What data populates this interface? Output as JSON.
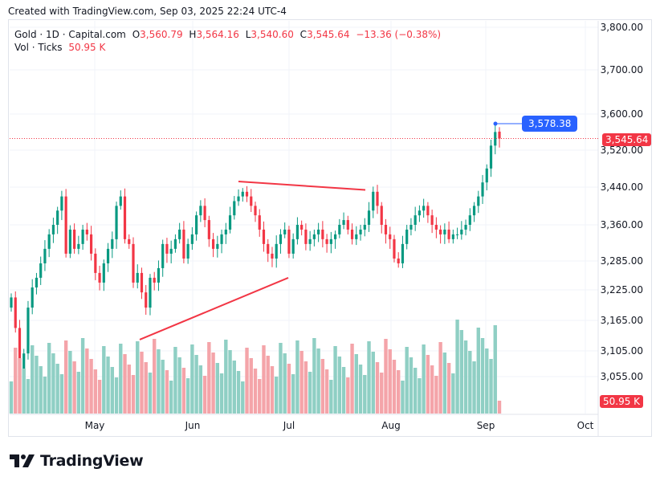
{
  "credit": "Created with TradingView.com, Sep 03, 2025 22:24 UTC-4",
  "legend": {
    "symbol": "Gold · 1D · Capital.com",
    "o_label": "O",
    "o_value": "3,560.79",
    "h_label": "H",
    "h_value": "3,564.16",
    "l_label": "L",
    "l_value": "3,540.60",
    "c_label": "C",
    "c_value": "3,545.64",
    "change": "−13.36 (−0.38%)",
    "vol_label": "Vol · Ticks",
    "vol_value": "50.95 K"
  },
  "price_tags": {
    "last_price": "3,545.64",
    "marker_price": "3,578.38",
    "volume": "50.95 K"
  },
  "brand": "TradingView",
  "colors": {
    "up": "#089981",
    "down": "#f23645",
    "vol_up": "#8fcfc4",
    "vol_down": "#f4a4a9",
    "marker": "#2962ff",
    "trendline": "#f23645"
  },
  "chart_data": {
    "type": "candlestick",
    "y_axis_ticks": [
      "3,800.00",
      "3,700.00",
      "3,600.00",
      "3,520.00",
      "3,440.00",
      "3,360.00",
      "3,285.00",
      "3,225.00",
      "3,165.00",
      "3,105.00",
      "3,055.00"
    ],
    "x_axis_ticks": [
      "May",
      "Jun",
      "Jul",
      "Aug",
      "Sep",
      "Oct"
    ],
    "y_scale": "log",
    "ylim": [
      3020,
      3840
    ],
    "last_close": 3545.64,
    "marker_level": 3578.38,
    "close_series_approx": [
      3210,
      3150,
      3050,
      3100,
      3190,
      3230,
      3250,
      3280,
      3310,
      3340,
      3360,
      3390,
      3420,
      3300,
      3350,
      3310,
      3320,
      3350,
      3340,
      3300,
      3260,
      3240,
      3280,
      3310,
      3330,
      3400,
      3420,
      3330,
      3320,
      3240,
      3260,
      3220,
      3190,
      3250,
      3240,
      3270,
      3320,
      3300,
      3310,
      3330,
      3350,
      3290,
      3320,
      3340,
      3380,
      3400,
      3370,
      3330,
      3310,
      3320,
      3340,
      3350,
      3380,
      3410,
      3420,
      3430,
      3420,
      3400,
      3380,
      3350,
      3320,
      3300,
      3290,
      3320,
      3340,
      3350,
      3300,
      3330,
      3360,
      3350,
      3320,
      3330,
      3340,
      3350,
      3330,
      3320,
      3330,
      3340,
      3360,
      3370,
      3350,
      3330,
      3340,
      3350,
      3360,
      3390,
      3430,
      3400,
      3360,
      3340,
      3330,
      3290,
      3280,
      3320,
      3350,
      3360,
      3380,
      3390,
      3400,
      3380,
      3360,
      3350,
      3340,
      3350,
      3330,
      3340,
      3340,
      3350,
      3360,
      3380,
      3400,
      3420,
      3450,
      3480,
      3530,
      3560,
      3545.64
    ],
    "trendlines": [
      {
        "from": [
          3127,
          "Apr 22"
        ],
        "to": [
          3250,
          "Jul 01"
        ]
      },
      {
        "from": [
          3452,
          "Jun 16"
        ],
        "to": [
          3434,
          "Jul 23"
        ]
      }
    ]
  }
}
